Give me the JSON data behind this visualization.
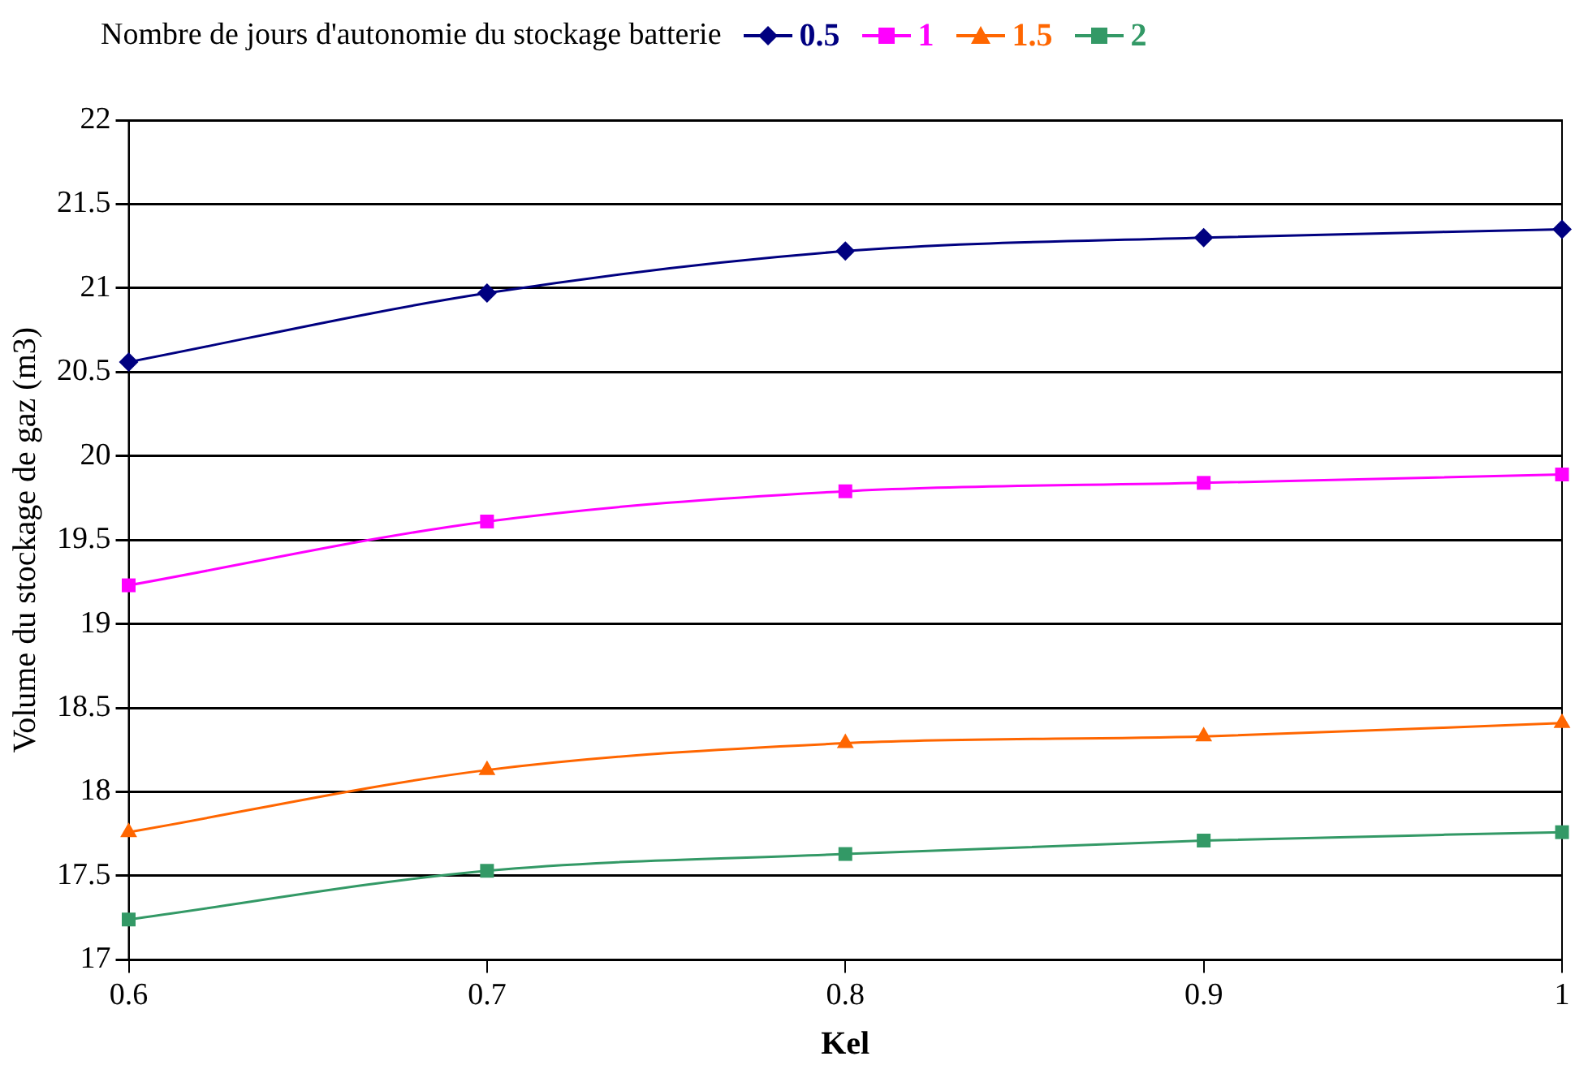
{
  "chart_data": {
    "type": "line",
    "legend_title": "Nombre de jours d'autonomie du stockage batterie",
    "xlabel": "Kel",
    "ylabel": "Volume du stockage de gaz (m3)",
    "x": [
      0.6,
      0.7,
      0.8,
      0.9,
      1
    ],
    "xlim": [
      0.6,
      1
    ],
    "xticks": [
      0.6,
      0.7,
      0.8,
      0.9,
      1
    ],
    "ylim": [
      17,
      22
    ],
    "yticks": [
      17,
      17.5,
      18,
      18.5,
      19,
      19.5,
      20,
      20.5,
      21,
      21.5,
      22
    ],
    "grid": "y",
    "legend": "top",
    "line_style": "solid",
    "series": [
      {
        "name": "0.5",
        "color": "#000080",
        "marker": "diamond",
        "values": [
          20.56,
          20.97,
          21.22,
          21.3,
          21.35
        ]
      },
      {
        "name": "1",
        "color": "#ff00ff",
        "marker": "square",
        "values": [
          19.23,
          19.61,
          19.79,
          19.84,
          19.89
        ]
      },
      {
        "name": "1.5",
        "color": "#ff6600",
        "marker": "triangle",
        "values": [
          17.76,
          18.13,
          18.29,
          18.33,
          18.41
        ]
      },
      {
        "name": "2",
        "color": "#339966",
        "marker": "square",
        "values": [
          17.24,
          17.53,
          17.63,
          17.71,
          17.76
        ]
      }
    ]
  }
}
